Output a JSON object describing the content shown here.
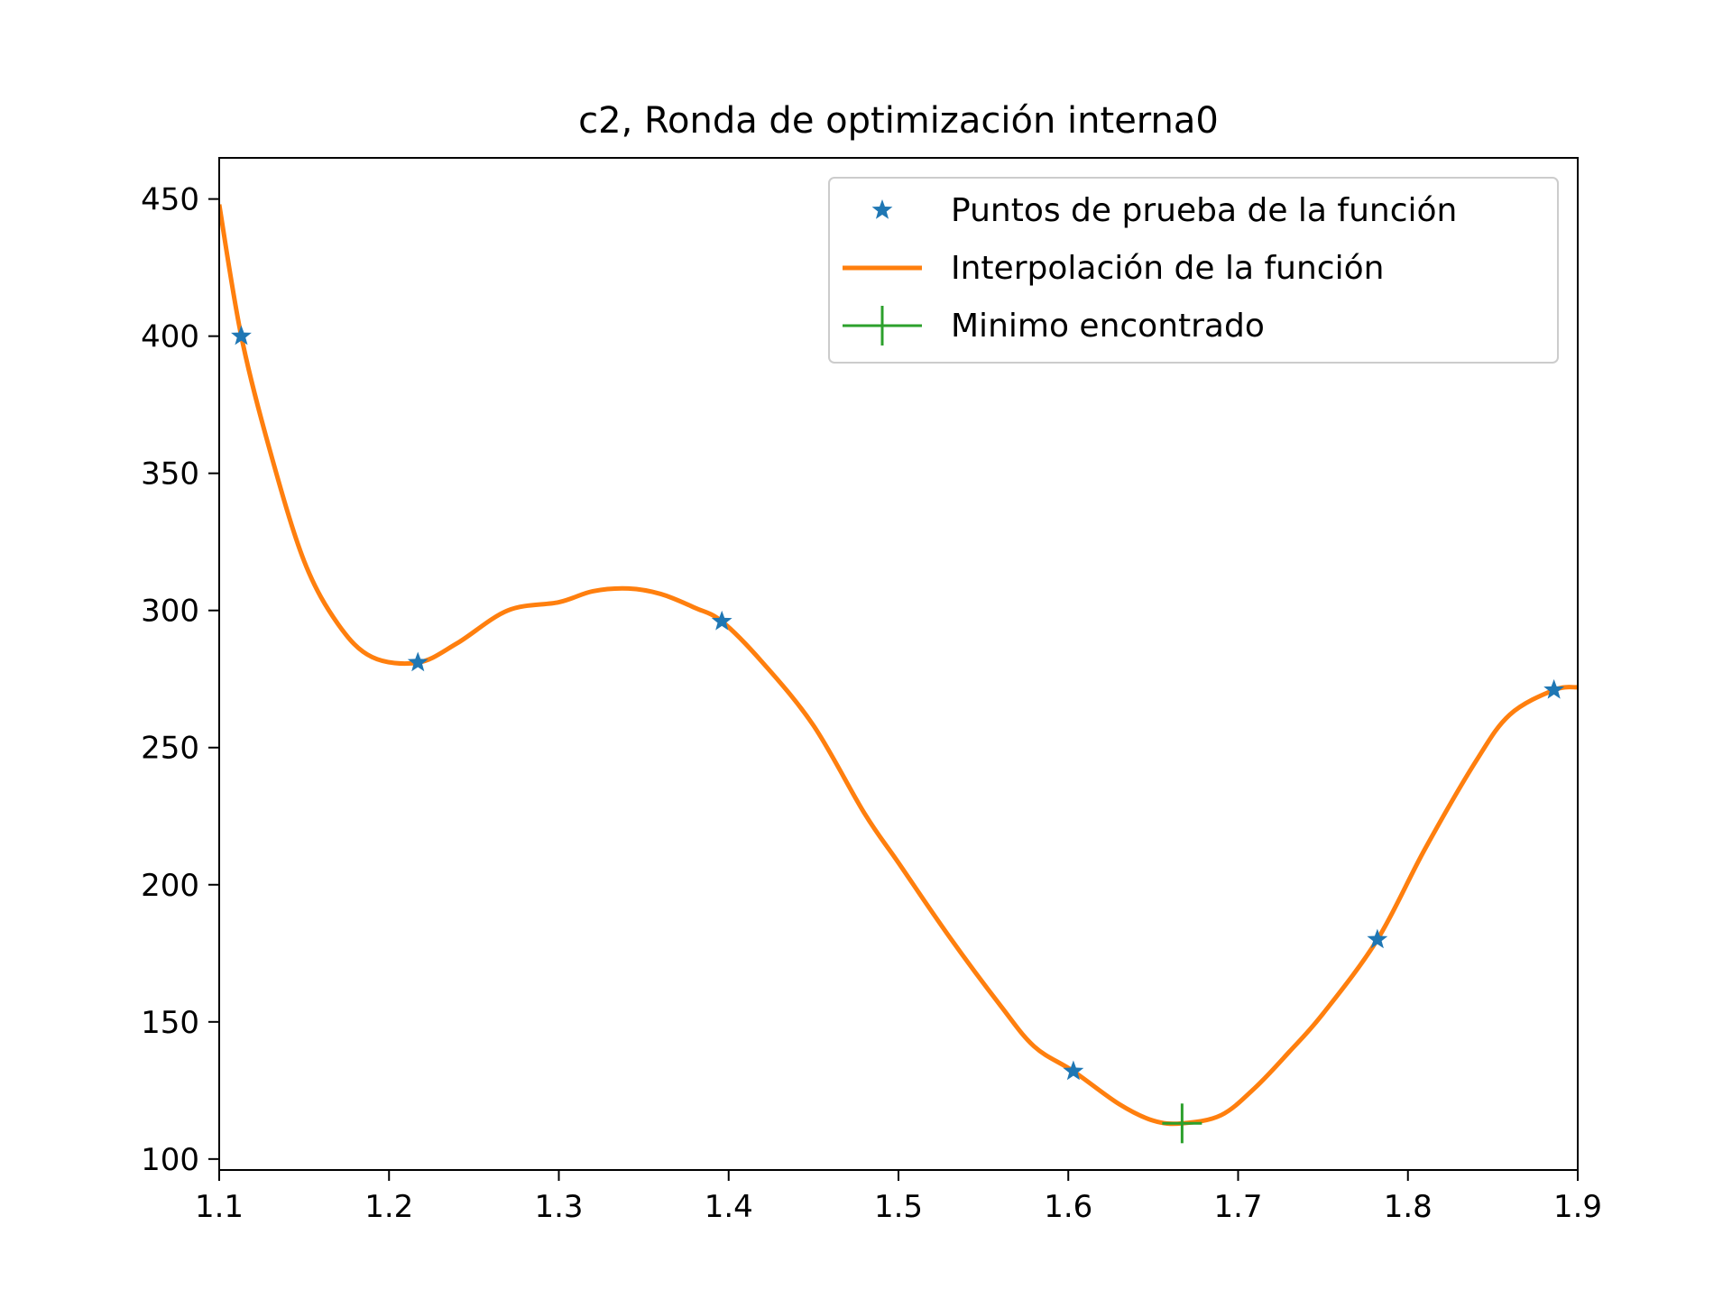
{
  "chart_data": {
    "type": "line",
    "title": "c2, Ronda de optimización interna0",
    "xlabel": "",
    "ylabel": "",
    "xlim": [
      1.1,
      1.9
    ],
    "ylim": [
      96,
      465
    ],
    "xticks": [
      1.1,
      1.2,
      1.3,
      1.4,
      1.5,
      1.6,
      1.7,
      1.8,
      1.9
    ],
    "xtick_labels": [
      "1.1",
      "1.2",
      "1.3",
      "1.4",
      "1.5",
      "1.6",
      "1.7",
      "1.8",
      "1.9"
    ],
    "yticks": [
      100,
      150,
      200,
      250,
      300,
      350,
      400,
      450
    ],
    "ytick_labels": [
      "100",
      "150",
      "200",
      "250",
      "300",
      "350",
      "400",
      "450"
    ],
    "grid": false,
    "legend_position": "top-right",
    "series": [
      {
        "name": "Puntos de prueba de la función",
        "kind": "scatter",
        "marker": "star",
        "color": "#1f77b4",
        "x": [
          1.113,
          1.217,
          1.396,
          1.603,
          1.782,
          1.886
        ],
        "y": [
          400,
          281,
          296,
          132,
          180,
          271
        ]
      },
      {
        "name": "Interpolación de la función",
        "kind": "line",
        "color": "#ff7f0e",
        "x": [
          1.1,
          1.113,
          1.13,
          1.15,
          1.17,
          1.19,
          1.217,
          1.24,
          1.27,
          1.3,
          1.32,
          1.341,
          1.36,
          1.38,
          1.396,
          1.42,
          1.45,
          1.48,
          1.5,
          1.53,
          1.56,
          1.58,
          1.603,
          1.63,
          1.65,
          1.667,
          1.69,
          1.71,
          1.73,
          1.75,
          1.782,
          1.81,
          1.84,
          1.86,
          1.886,
          1.9
        ],
        "y": [
          448,
          400,
          358,
          318,
          295,
          283,
          281,
          288,
          300,
          303,
          307,
          308,
          306,
          301,
          296,
          281,
          258,
          226,
          208,
          181,
          156,
          141,
          132,
          120,
          114,
          113,
          116,
          126,
          139,
          153,
          180,
          213,
          245,
          262,
          271,
          272
        ]
      },
      {
        "name": "Minimo encontrado",
        "kind": "scatter",
        "marker": "plus",
        "color": "#2ca02c",
        "x": [
          1.667
        ],
        "y": [
          113
        ]
      }
    ]
  }
}
